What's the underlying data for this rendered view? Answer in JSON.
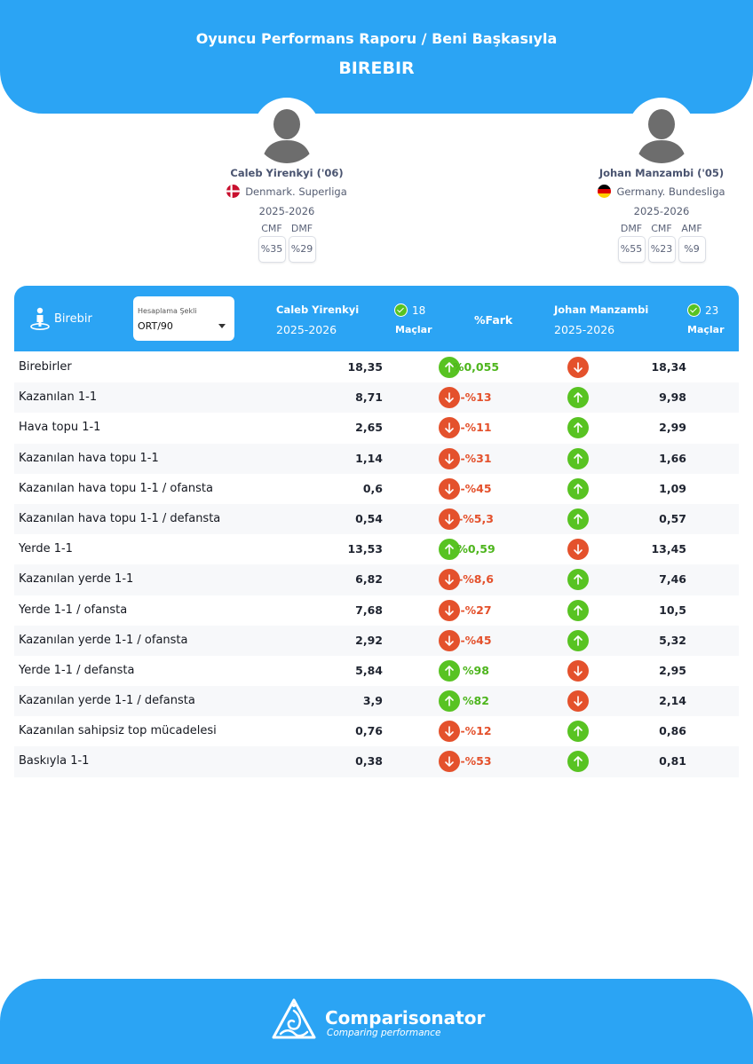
{
  "header": {
    "title": "Oyuncu Performans Raporu / Beni Başkasıyla",
    "subtitle": "BIREBIR"
  },
  "players": [
    {
      "name": "Caleb Yirenkyi ('06)",
      "league": "Denmark. Superliga",
      "season": "2025-2026",
      "positions": [
        {
          "label": "CMF",
          "value": "%35"
        },
        {
          "label": "DMF",
          "value": "%29"
        }
      ],
      "flag": "denmark-flag-icon"
    },
    {
      "name": "Johan Manzambi ('05)",
      "league": "Germany. Bundesliga",
      "season": "2025-2026",
      "positions": [
        {
          "label": "DMF",
          "value": "%55"
        },
        {
          "label": "CMF",
          "value": "%23"
        },
        {
          "label": "AMF",
          "value": "%9"
        }
      ],
      "flag": "germany-flag-icon"
    }
  ],
  "table_header": {
    "section_label": "Birebir",
    "section_icon": "person-target-icon",
    "calc_label": "Hesaplama Şekli",
    "calc_value": "ORT/90",
    "p1_name": "Caleb Yirenkyi",
    "p1_season": "2025-2026",
    "p1_matches": "18",
    "matches_label": "Maçlar",
    "diff_label": "%Fark",
    "p2_name": "Johan Manzambi",
    "p2_season": "2025-2026",
    "p2_matches": "23"
  },
  "rows": [
    {
      "label": "Birebirler",
      "v1": "18,35",
      "a1": "up",
      "pct": "%0,055",
      "a2": "down",
      "v2": "18,34"
    },
    {
      "label": "Kazanılan 1-1",
      "v1": "8,71",
      "a1": "down",
      "pct": "-%13",
      "a2": "up",
      "v2": "9,98"
    },
    {
      "label": "Hava topu 1-1",
      "v1": "2,65",
      "a1": "down",
      "pct": "-%11",
      "a2": "up",
      "v2": "2,99"
    },
    {
      "label": "Kazanılan hava topu 1-1",
      "v1": "1,14",
      "a1": "down",
      "pct": "-%31",
      "a2": "up",
      "v2": "1,66"
    },
    {
      "label": "Kazanılan hava topu 1-1 / ofansta",
      "v1": "0,6",
      "a1": "down",
      "pct": "-%45",
      "a2": "up",
      "v2": "1,09"
    },
    {
      "label": "Kazanılan hava topu 1-1 / defansta",
      "v1": "0,54",
      "a1": "down",
      "pct": "-%5,3",
      "a2": "up",
      "v2": "0,57"
    },
    {
      "label": "Yerde 1-1",
      "v1": "13,53",
      "a1": "up",
      "pct": "%0,59",
      "a2": "down",
      "v2": "13,45"
    },
    {
      "label": "Kazanılan yerde 1-1",
      "v1": "6,82",
      "a1": "down",
      "pct": "-%8,6",
      "a2": "up",
      "v2": "7,46"
    },
    {
      "label": "Yerde 1-1 / ofansta",
      "v1": "7,68",
      "a1": "down",
      "pct": "-%27",
      "a2": "up",
      "v2": "10,5"
    },
    {
      "label": "Kazanılan yerde 1-1 / ofansta",
      "v1": "2,92",
      "a1": "down",
      "pct": "-%45",
      "a2": "up",
      "v2": "5,32"
    },
    {
      "label": "Yerde 1-1 / defansta",
      "v1": "5,84",
      "a1": "up",
      "pct": "%98",
      "a2": "down",
      "v2": "2,95"
    },
    {
      "label": "Kazanılan yerde 1-1 / defansta",
      "v1": "3,9",
      "a1": "up",
      "pct": "%82",
      "a2": "down",
      "v2": "2,14"
    },
    {
      "label": "Kazanılan sahipsiz top mücadelesi",
      "v1": "0,76",
      "a1": "down",
      "pct": "-%12",
      "a2": "up",
      "v2": "0,86"
    },
    {
      "label": "Baskıyla 1-1",
      "v1": "0,38",
      "a1": "down",
      "pct": "-%53",
      "a2": "up",
      "v2": "0,81"
    }
  ],
  "footer": {
    "brand": "Comparisonator",
    "tagline": "Comparing performance",
    "logo": "comparisonator-logo-icon"
  },
  "colors": {
    "accent": "#2ba4f4",
    "up": "#58c322",
    "down": "#e4512c"
  }
}
